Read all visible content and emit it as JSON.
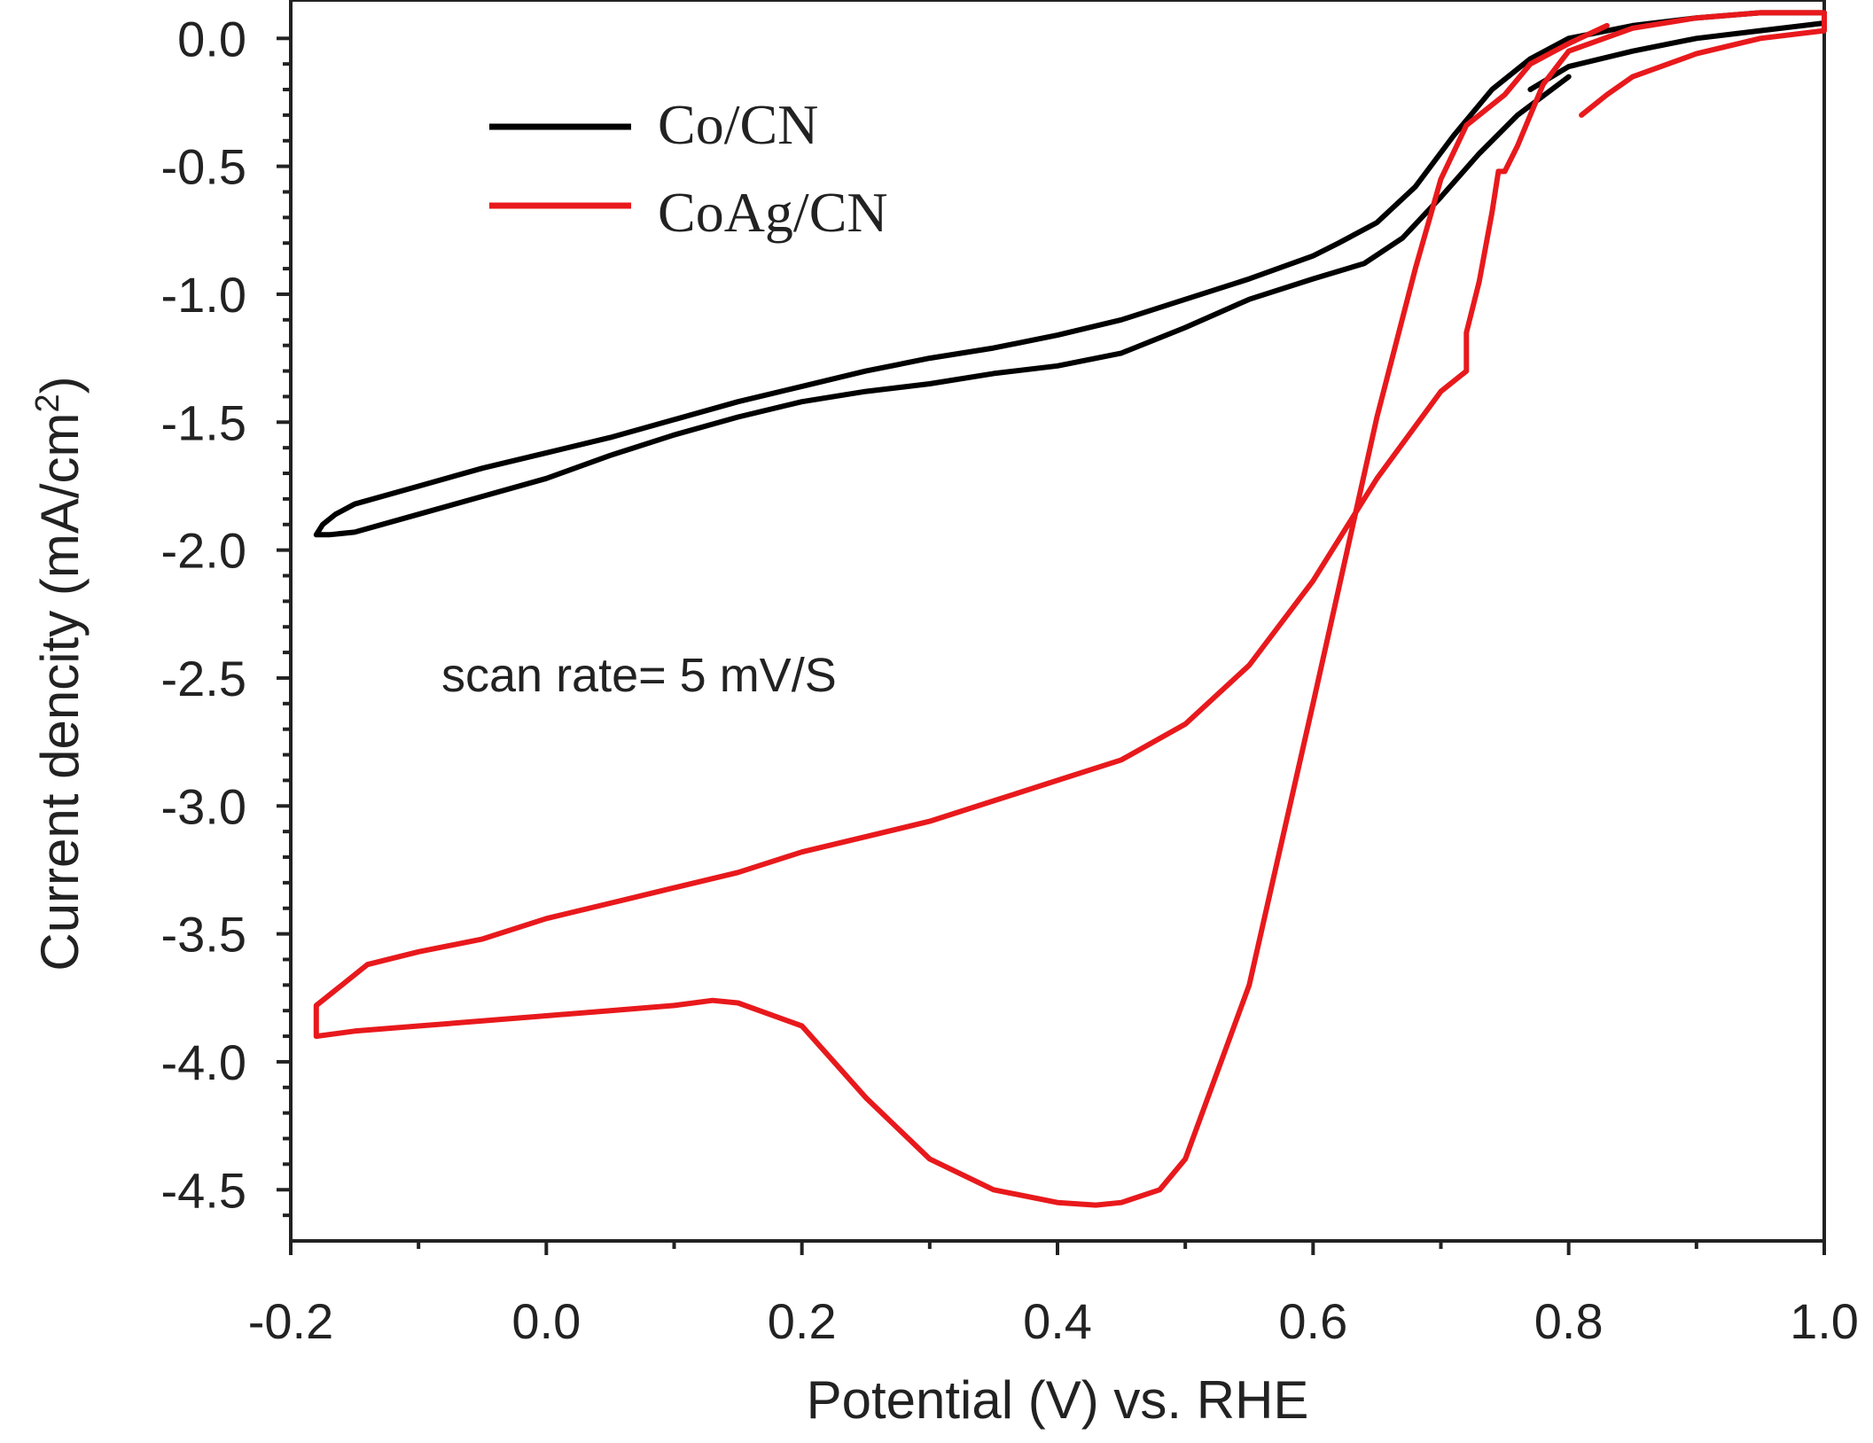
{
  "chart_data": {
    "type": "line",
    "title": "",
    "xlabel": "Potential (V) vs. RHE",
    "ylabel_main": "Current dencity (mA/cm",
    "ylabel_sup": "2",
    "ylabel_close": ")",
    "xlim": [
      -0.2,
      1.0
    ],
    "ylim": [
      -4.7,
      0.15
    ],
    "xticks": [
      -0.2,
      0.0,
      0.2,
      0.4,
      0.6,
      0.8,
      1.0
    ],
    "xtick_labels": [
      "-0.2",
      "0.0",
      "0.2",
      "0.4",
      "0.6",
      "0.8",
      "1.0"
    ],
    "yticks": [
      0.0,
      -0.5,
      -1.0,
      -1.5,
      -2.0,
      -2.5,
      -3.0,
      -3.5,
      -4.0,
      -4.5
    ],
    "ytick_labels": [
      "0.0",
      "-0.5",
      "-1.0",
      "-1.5",
      "-2.0",
      "-2.5",
      "-3.0",
      "-3.5",
      "-4.0",
      "-4.5"
    ],
    "grid": false,
    "legend_position": "top-left",
    "annotation": "scan rate= 5 mV/S",
    "series": [
      {
        "name": "Co/CN",
        "color": "#000000",
        "x": [
          0.77,
          0.8,
          0.85,
          0.9,
          0.95,
          1.0,
          1.0,
          0.95,
          0.9,
          0.85,
          0.8,
          0.77,
          0.74,
          0.71,
          0.68,
          0.65,
          0.62,
          0.6,
          0.55,
          0.5,
          0.45,
          0.4,
          0.35,
          0.3,
          0.25,
          0.2,
          0.15,
          0.1,
          0.05,
          0.0,
          -0.05,
          -0.1,
          -0.15,
          -0.165,
          -0.175,
          -0.18,
          -0.17,
          -0.15,
          -0.1,
          -0.05,
          0.0,
          0.05,
          0.1,
          0.15,
          0.2,
          0.25,
          0.3,
          0.35,
          0.4,
          0.45,
          0.5,
          0.55,
          0.6,
          0.64,
          0.67,
          0.7,
          0.73,
          0.76,
          0.8
        ],
        "y": [
          -0.2,
          -0.11,
          -0.05,
          0.0,
          0.03,
          0.06,
          0.1,
          0.1,
          0.08,
          0.05,
          0.0,
          -0.08,
          -0.2,
          -0.38,
          -0.58,
          -0.72,
          -0.8,
          -0.85,
          -0.94,
          -1.02,
          -1.1,
          -1.16,
          -1.21,
          -1.25,
          -1.3,
          -1.36,
          -1.42,
          -1.49,
          -1.56,
          -1.62,
          -1.68,
          -1.75,
          -1.82,
          -1.86,
          -1.9,
          -1.94,
          -1.94,
          -1.93,
          -1.86,
          -1.79,
          -1.72,
          -1.63,
          -1.55,
          -1.48,
          -1.42,
          -1.38,
          -1.35,
          -1.31,
          -1.28,
          -1.23,
          -1.13,
          -1.02,
          -0.94,
          -0.88,
          -0.78,
          -0.62,
          -0.45,
          -0.3,
          -0.15
        ]
      },
      {
        "name": "CoAg/CN",
        "color": "#e8191c",
        "x": [
          0.81,
          0.83,
          0.85,
          0.9,
          0.95,
          1.0,
          1.0,
          0.95,
          0.9,
          0.85,
          0.8,
          0.78,
          0.76,
          0.75,
          0.745,
          0.74,
          0.73,
          0.72,
          0.72,
          0.7,
          0.65,
          0.6,
          0.55,
          0.5,
          0.45,
          0.4,
          0.35,
          0.3,
          0.25,
          0.2,
          0.15,
          0.1,
          0.05,
          0.0,
          -0.05,
          -0.1,
          -0.14,
          -0.16,
          -0.18,
          -0.18,
          -0.15,
          -0.1,
          -0.05,
          0.0,
          0.05,
          0.1,
          0.13,
          0.15,
          0.2,
          0.25,
          0.3,
          0.35,
          0.4,
          0.43,
          0.45,
          0.48,
          0.5,
          0.55,
          0.6,
          0.65,
          0.68,
          0.7,
          0.72,
          0.75,
          0.77,
          0.8,
          0.83
        ],
        "y": [
          -0.3,
          -0.22,
          -0.15,
          -0.06,
          0.0,
          0.03,
          0.1,
          0.1,
          0.08,
          0.04,
          -0.05,
          -0.18,
          -0.42,
          -0.52,
          -0.52,
          -0.68,
          -0.95,
          -1.15,
          -1.3,
          -1.38,
          -1.72,
          -2.12,
          -2.45,
          -2.68,
          -2.82,
          -2.9,
          -2.98,
          -3.06,
          -3.12,
          -3.18,
          -3.26,
          -3.32,
          -3.38,
          -3.44,
          -3.52,
          -3.57,
          -3.62,
          -3.7,
          -3.78,
          -3.9,
          -3.88,
          -3.86,
          -3.84,
          -3.82,
          -3.8,
          -3.78,
          -3.76,
          -3.77,
          -3.86,
          -4.14,
          -4.38,
          -4.5,
          -4.55,
          -4.56,
          -4.55,
          -4.5,
          -4.38,
          -3.7,
          -2.6,
          -1.48,
          -0.9,
          -0.55,
          -0.34,
          -0.22,
          -0.1,
          -0.02,
          0.05
        ]
      }
    ]
  }
}
